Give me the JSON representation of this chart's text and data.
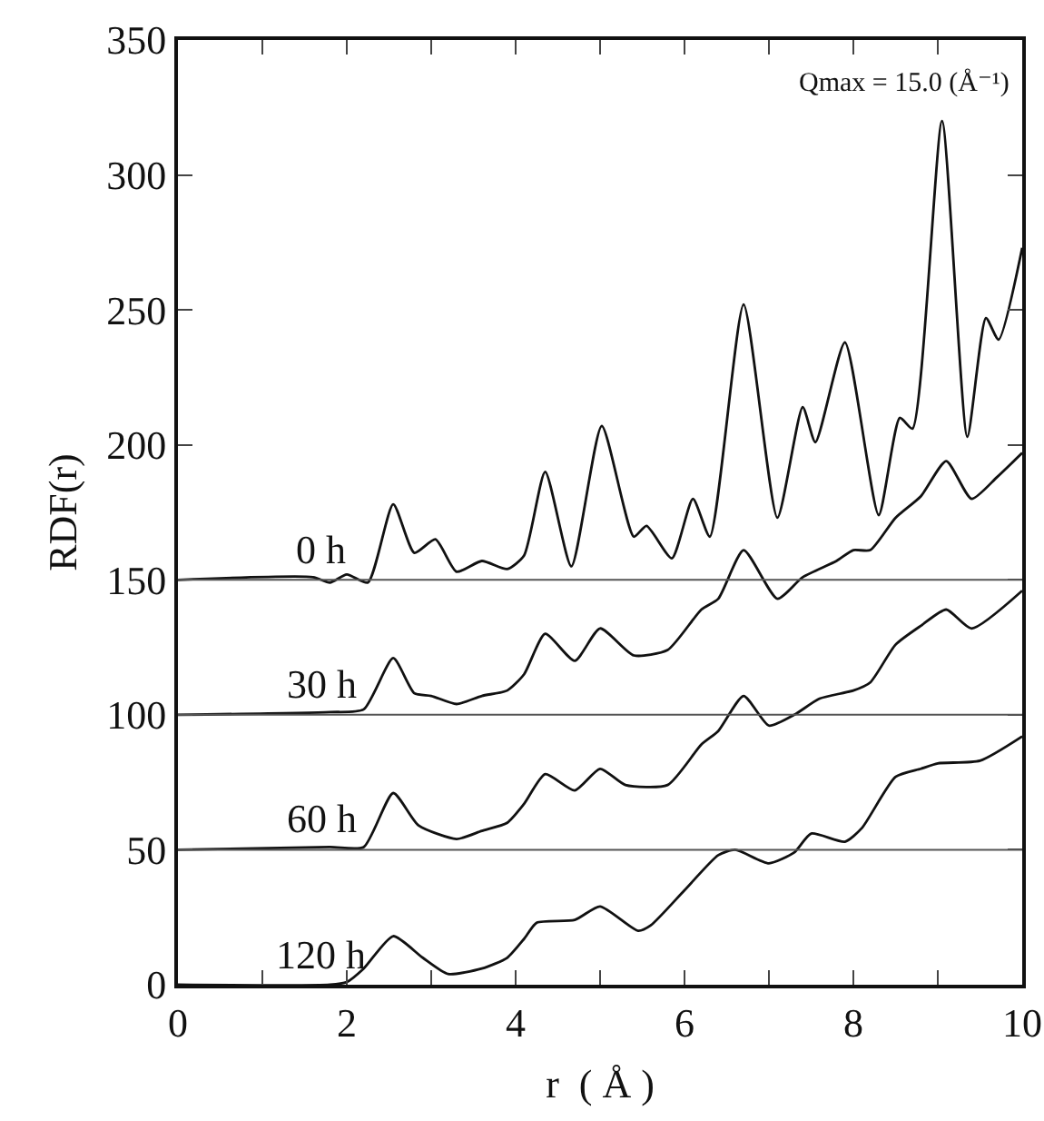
{
  "chart_data": {
    "type": "line",
    "xlabel": "r  ( Å )",
    "ylabel": "RDF(r)",
    "xlim": [
      0,
      10
    ],
    "ylim": [
      0,
      350
    ],
    "xticks": [
      0,
      {
        "value": 1,
        "label": null
      },
      2,
      {
        "value": 3,
        "label": null
      },
      4,
      {
        "value": 5,
        "label": null
      },
      6,
      {
        "value": 7,
        "label": null
      },
      8,
      {
        "value": 9,
        "label": null
      },
      10
    ],
    "yticks": [
      0,
      50,
      100,
      150,
      200,
      250,
      300,
      350
    ],
    "grid": false,
    "legend": false,
    "marker": "none",
    "line_style": "solid",
    "annotations": [
      "Qmax = 15.0 (Å⁻¹)"
    ],
    "ref_lines": [
      {
        "axis": "y",
        "value": 150,
        "color": "#555555"
      },
      {
        "axis": "y",
        "value": 100,
        "color": "#555555"
      },
      {
        "axis": "y",
        "value": 50,
        "color": "#555555"
      }
    ],
    "series": [
      {
        "name": "0 h",
        "color": "#111111",
        "x": [
          0,
          1.6,
          1.8,
          2.0,
          2.25,
          2.55,
          2.8,
          3.05,
          3.3,
          3.6,
          3.9,
          4.1,
          4.35,
          4.66,
          5.02,
          5.4,
          5.55,
          5.85,
          6.1,
          6.3,
          6.7,
          7.1,
          7.4,
          7.55,
          7.9,
          8.3,
          8.55,
          8.7,
          9.05,
          9.35,
          9.57,
          9.72,
          10
        ],
        "values": [
          150,
          151,
          149,
          152,
          149,
          178,
          160,
          165,
          153,
          157,
          154,
          159,
          190,
          155,
          207,
          166,
          170,
          158,
          180,
          166,
          252,
          173,
          214,
          201,
          238,
          174,
          210,
          206,
          320,
          203,
          247,
          239,
          273
        ]
      },
      {
        "name": "30 h",
        "color": "#111111",
        "x": [
          0,
          1.8,
          2.2,
          2.55,
          2.8,
          3.0,
          3.3,
          3.6,
          3.9,
          4.1,
          4.35,
          4.7,
          5.0,
          5.4,
          5.8,
          6.2,
          6.4,
          6.7,
          7.1,
          7.4,
          7.8,
          8.0,
          8.2,
          8.5,
          8.8,
          9.1,
          9.4,
          9.7,
          10
        ],
        "values": [
          100,
          101,
          102,
          121,
          108,
          107,
          104,
          107,
          109,
          115,
          130,
          120,
          132,
          122,
          124,
          139,
          143,
          161,
          143,
          151,
          157,
          161,
          161,
          173,
          181,
          194,
          180,
          188,
          197
        ]
      },
      {
        "name": "60 h",
        "color": "#111111",
        "x": [
          0,
          1.8,
          2.2,
          2.55,
          2.85,
          3.3,
          3.6,
          3.9,
          4.1,
          4.35,
          4.7,
          5.0,
          5.3,
          5.8,
          6.2,
          6.4,
          6.7,
          7.0,
          7.3,
          7.6,
          8.0,
          8.2,
          8.5,
          8.8,
          9.1,
          9.4,
          10
        ],
        "values": [
          50,
          51,
          51,
          71,
          59,
          54,
          57,
          60,
          67,
          78,
          72,
          80,
          74,
          74,
          89,
          94,
          107,
          96,
          100,
          106,
          109,
          112,
          126,
          133,
          139,
          132,
          146
        ]
      },
      {
        "name": "120 h",
        "color": "#111111",
        "x": [
          0,
          1.8,
          2.0,
          2.2,
          2.55,
          2.9,
          3.2,
          3.6,
          3.9,
          4.1,
          4.25,
          4.7,
          5.0,
          5.45,
          5.6,
          6.0,
          6.4,
          6.6,
          7.0,
          7.3,
          7.5,
          7.9,
          8.1,
          8.5,
          8.8,
          9.0,
          9.5,
          10
        ],
        "values": [
          0,
          0,
          1,
          6,
          18,
          10,
          4,
          6,
          10,
          17,
          23,
          24,
          29,
          20,
          22,
          35,
          48,
          50,
          45,
          49,
          56,
          53,
          58,
          77,
          80,
          82,
          83,
          92
        ]
      }
    ]
  }
}
